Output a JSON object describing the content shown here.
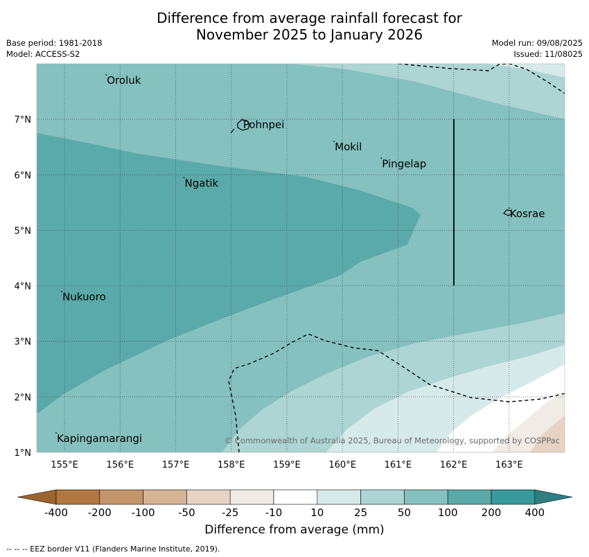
{
  "title_line1": "Difference from average rainfall forecast for",
  "title_line2": "November 2025 to January 2026",
  "base_period": "Base period: 1981-2018",
  "model": "Model: ACCESS-S2",
  "model_run": "Model run: 09/08/2025",
  "issued": "Issued: 11/08025",
  "copyright": "© Commonwealth of Australia 2025, Bureau of Meteorology, supported by COSPPac",
  "colorbar_label": "Difference from average (mm)",
  "eez_note": "--  --  -- EEZ border V11 (Flanders Marine Institute, 2019).",
  "map": {
    "lon_range": [
      154.5,
      164
    ],
    "lat_range": [
      1,
      8
    ],
    "lon_ticks": [
      "155°E",
      "156°E",
      "157°E",
      "158°E",
      "159°E",
      "160°E",
      "161°E",
      "162°E",
      "163°E"
    ],
    "lat_ticks": [
      "7°N",
      "6°N",
      "5°N",
      "4°N",
      "3°N",
      "2°N",
      "1°N"
    ],
    "places": [
      {
        "name": "Oroluk",
        "lon": 155.75,
        "lat": 7.7
      },
      {
        "name": "Pohnpei",
        "lon": 158.2,
        "lat": 6.9
      },
      {
        "name": "Mokil",
        "lon": 159.85,
        "lat": 6.5
      },
      {
        "name": "Pingelap",
        "lon": 160.7,
        "lat": 6.2
      },
      {
        "name": "Ngatik",
        "lon": 157.15,
        "lat": 5.85
      },
      {
        "name": "Kosrae",
        "lon": 163.0,
        "lat": 5.3
      },
      {
        "name": "Nukuoro",
        "lon": 154.95,
        "lat": 3.8
      },
      {
        "name": "Kapingamarangi",
        "lon": 154.85,
        "lat": 1.25
      }
    ]
  },
  "colorbar": {
    "ticks": [
      "-400",
      "-200",
      "-100",
      "-50",
      "-25",
      "-10",
      "10",
      "25",
      "50",
      "100",
      "200",
      "400"
    ],
    "colors": [
      "#9c6530",
      "#b07840",
      "#c4956a",
      "#d6b496",
      "#e6d3c3",
      "#f1ebe6",
      "#ffffff",
      "#d6eae9",
      "#acd5d4",
      "#84c1bf",
      "#5aaaa9",
      "#37999a",
      "#2d7f80"
    ]
  },
  "colors": {
    "c50": "#acd5d4",
    "c100": "#84c1bf",
    "c200": "#5aaaa9",
    "c25": "#d6eae9",
    "c_white": "#ffffff",
    "c_m10": "#f1ebe6",
    "c_m25": "#e6d3c3"
  }
}
